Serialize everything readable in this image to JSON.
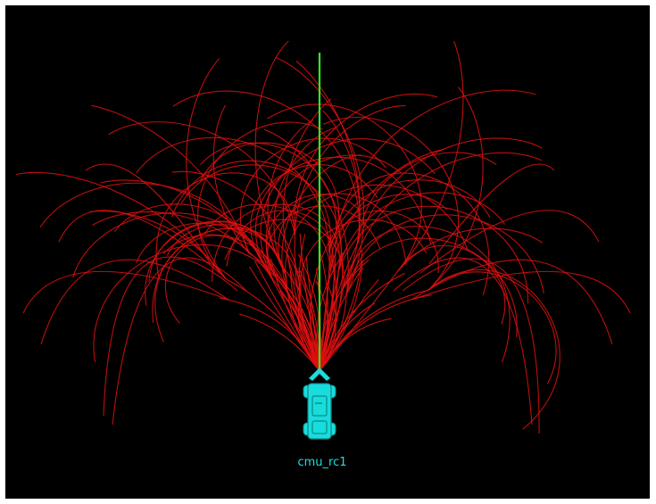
{
  "robot": {
    "label": "cmu_rc1"
  },
  "colors": {
    "background": "#000000",
    "page_border": "#ffffff",
    "trajectory": "#e01010",
    "selected_path": "#33ee22",
    "robot_body": "#19dcdc",
    "robot_detail": "#0a8a8a",
    "label": "#19e1e1"
  },
  "icons": {
    "robot": "vehicle-topdown-icon",
    "heading": "heading-chevron-icon"
  },
  "visualization": {
    "type": "trajectory-fan",
    "selected_path_direction": "straight-ahead"
  }
}
